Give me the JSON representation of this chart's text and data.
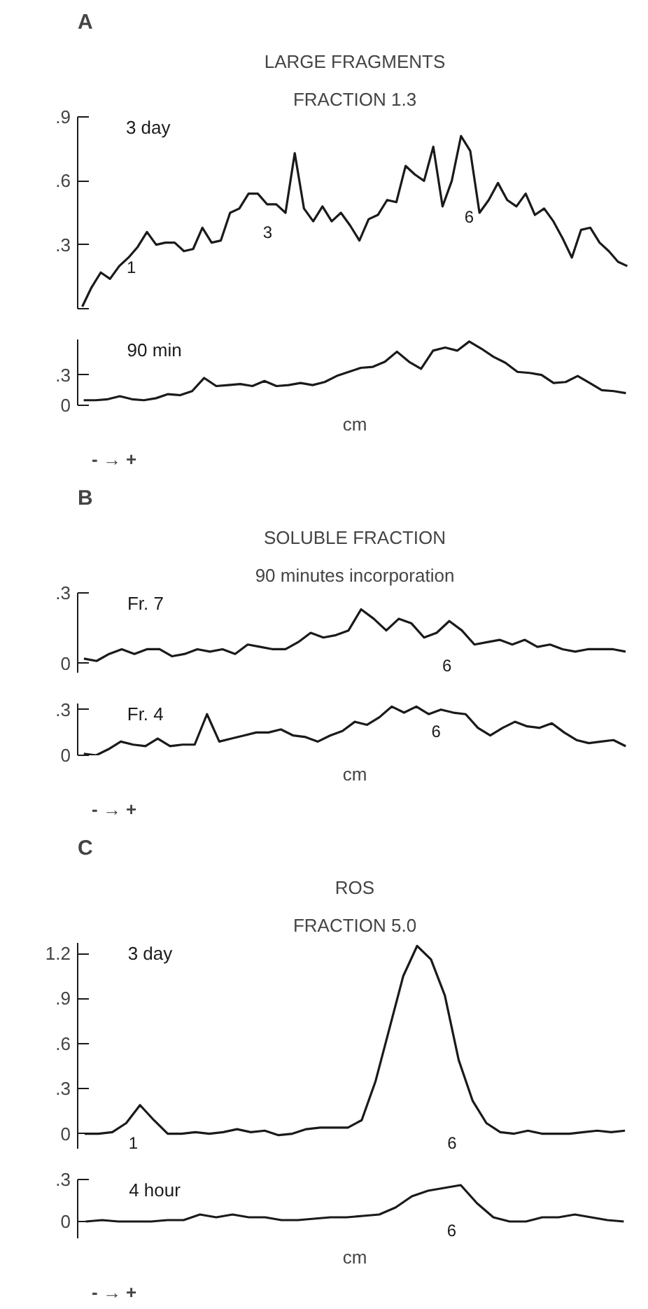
{
  "chart_data": [
    {
      "type": "line",
      "title": "LARGE FRAGMENTS",
      "subtitle": "FRACTION 1.3",
      "annotations": [
        "A",
        "1",
        "3",
        "6"
      ],
      "tick_labels": "y",
      "ylim": [
        0,
        0.9
      ],
      "yticks": [
        {
          "value": 0,
          "label": null
        },
        {
          "value": 0.3,
          "label": ".3"
        },
        {
          "value": 0.6,
          "label": ".6"
        },
        {
          "value": 0.9,
          "label": ".9"
        }
      ],
      "categories": [
        null,
        null,
        null,
        null,
        null,
        null,
        null,
        null,
        null,
        null,
        null,
        null,
        null,
        null,
        null,
        null,
        null,
        null,
        null,
        null,
        null,
        null,
        null,
        null,
        null,
        null,
        null,
        null,
        null,
        null,
        null,
        null,
        null,
        null,
        null,
        null,
        null,
        null,
        null,
        null,
        null,
        null,
        null,
        null,
        null,
        null,
        null,
        null,
        null,
        null,
        null,
        null,
        null,
        null,
        null,
        null,
        null,
        null,
        null,
        null
      ],
      "series": [
        {
          "name": "3 day",
          "color": "#1a1a1a",
          "values": [
            0.01,
            0.1,
            0.17,
            0.14,
            0.2,
            0.24,
            0.29,
            0.36,
            0.3,
            0.31,
            0.31,
            0.27,
            0.28,
            0.38,
            0.31,
            0.32,
            0.45,
            0.47,
            0.54,
            0.54,
            0.49,
            0.49,
            0.45,
            0.73,
            0.47,
            0.41,
            0.48,
            0.41,
            0.45,
            0.39,
            0.32,
            0.42,
            0.44,
            0.51,
            0.5,
            0.67,
            0.63,
            0.6,
            0.76,
            0.48,
            0.6,
            0.81,
            0.74,
            0.45,
            0.51,
            0.59,
            0.51,
            0.48,
            0.54,
            0.44,
            0.47,
            0.41,
            0.33,
            0.24,
            0.37,
            0.38,
            0.31,
            0.27,
            0.22,
            0.2
          ]
        }
      ]
    },
    {
      "type": "line",
      "xlabel": "cm",
      "annotations": [
        "- → +"
      ],
      "tick_labels": "y",
      "ylim": [
        0,
        0.65
      ],
      "yticks": [
        {
          "value": 0,
          "label": "0"
        },
        {
          "value": 0.3,
          "label": ".3"
        }
      ],
      "categories": [
        null,
        null,
        null,
        null,
        null,
        null,
        null,
        null,
        null,
        null,
        null,
        null,
        null,
        null,
        null,
        null,
        null,
        null,
        null,
        null,
        null,
        null,
        null,
        null,
        null,
        null,
        null,
        null,
        null,
        null,
        null,
        null,
        null,
        null,
        null,
        null,
        null,
        null,
        null,
        null,
        null,
        null,
        null,
        null,
        null,
        null
      ],
      "series": [
        {
          "name": "90 min",
          "color": "#1a1a1a",
          "values": [
            0.05,
            0.05,
            0.06,
            0.09,
            0.06,
            0.05,
            0.07,
            0.11,
            0.1,
            0.14,
            0.27,
            0.19,
            0.2,
            0.21,
            0.19,
            0.24,
            0.19,
            0.2,
            0.22,
            0.2,
            0.23,
            0.29,
            0.33,
            0.37,
            0.38,
            0.43,
            0.53,
            0.43,
            0.36,
            0.54,
            0.57,
            0.54,
            0.63,
            0.56,
            0.48,
            0.42,
            0.33,
            0.32,
            0.3,
            0.22,
            0.23,
            0.29,
            0.22,
            0.15,
            0.14,
            0.12
          ]
        }
      ]
    },
    {
      "type": "line",
      "title": "SOLUBLE FRACTION",
      "subtitle": "90 minutes incorporation",
      "annotations": [
        "B",
        "6"
      ],
      "tick_labels": "y",
      "ylim": [
        -0.04,
        0.3
      ],
      "yticks": [
        {
          "value": 0,
          "label": "0"
        },
        {
          "value": 0.3,
          "label": ".3"
        }
      ],
      "categories": [
        null,
        null,
        null,
        null,
        null,
        null,
        null,
        null,
        null,
        null,
        null,
        null,
        null,
        null,
        null,
        null,
        null,
        null,
        null,
        null,
        null,
        null,
        null,
        null,
        null,
        null,
        null,
        null,
        null,
        null,
        null,
        null,
        null,
        null,
        null,
        null,
        null,
        null,
        null,
        null,
        null,
        null,
        null,
        null
      ],
      "series": [
        {
          "name": "Fr. 7",
          "color": "#1a1a1a",
          "values": [
            0.02,
            0.01,
            0.04,
            0.06,
            0.04,
            0.06,
            0.06,
            0.03,
            0.04,
            0.06,
            0.05,
            0.06,
            0.04,
            0.08,
            0.07,
            0.06,
            0.06,
            0.09,
            0.13,
            0.11,
            0.12,
            0.14,
            0.23,
            0.19,
            0.14,
            0.19,
            0.17,
            0.11,
            0.13,
            0.18,
            0.14,
            0.08,
            0.09,
            0.1,
            0.08,
            0.1,
            0.07,
            0.08,
            0.06,
            0.05,
            0.06,
            0.06,
            0.06,
            0.05
          ]
        }
      ]
    },
    {
      "type": "line",
      "xlabel": "cm",
      "annotations": [
        "6",
        "- → +"
      ],
      "tick_labels": "y",
      "ylim": [
        0,
        0.34
      ],
      "yticks": [
        {
          "value": 0,
          "label": "0"
        },
        {
          "value": 0.3,
          "label": ".3"
        }
      ],
      "categories": [
        null,
        null,
        null,
        null,
        null,
        null,
        null,
        null,
        null,
        null,
        null,
        null,
        null,
        null,
        null,
        null,
        null,
        null,
        null,
        null,
        null,
        null,
        null,
        null,
        null,
        null,
        null,
        null,
        null,
        null,
        null,
        null,
        null,
        null,
        null,
        null,
        null,
        null,
        null,
        null,
        null,
        null,
        null,
        null,
        null
      ],
      "series": [
        {
          "name": "Fr. 4",
          "color": "#1a1a1a",
          "values": [
            0.01,
            0.0,
            0.04,
            0.09,
            0.07,
            0.06,
            0.11,
            0.06,
            0.07,
            0.07,
            0.27,
            0.09,
            0.11,
            0.13,
            0.15,
            0.15,
            0.17,
            0.13,
            0.12,
            0.09,
            0.13,
            0.16,
            0.22,
            0.2,
            0.25,
            0.32,
            0.28,
            0.32,
            0.27,
            0.3,
            0.28,
            0.27,
            0.18,
            0.13,
            0.18,
            0.22,
            0.19,
            0.18,
            0.21,
            0.15,
            0.1,
            0.08,
            0.09,
            0.1,
            0.06
          ]
        }
      ]
    },
    {
      "type": "line",
      "title": "ROS",
      "subtitle": "FRACTION 5.0",
      "annotations": [
        "C",
        "1",
        "6"
      ],
      "tick_labels": "y",
      "ylim": [
        -0.1,
        1.27
      ],
      "yticks": [
        {
          "value": 0,
          "label": "0"
        },
        {
          "value": 0.3,
          "label": ".3"
        },
        {
          "value": 0.6,
          "label": ".6"
        },
        {
          "value": 0.9,
          "label": ".9"
        },
        {
          "value": 1.2,
          "label": "1.2"
        }
      ],
      "categories": [
        null,
        null,
        null,
        null,
        null,
        null,
        null,
        null,
        null,
        null,
        null,
        null,
        null,
        null,
        null,
        null,
        null,
        null,
        null,
        null,
        null,
        null,
        null,
        null,
        null,
        null,
        null,
        null,
        null,
        null,
        null,
        null,
        null,
        null,
        null,
        null,
        null,
        null,
        null,
        null
      ],
      "series": [
        {
          "name": "3 day",
          "color": "#1a1a1a",
          "values": [
            0,
            0,
            0.01,
            0.07,
            0.19,
            0.09,
            0.0,
            0,
            0.01,
            0,
            0.01,
            0.03,
            0.01,
            0.02,
            -0.01,
            0,
            0.03,
            0.04,
            0.04,
            0.04,
            0.09,
            0.35,
            0.7,
            1.05,
            1.25,
            1.16,
            0.92,
            0.49,
            0.22,
            0.07,
            0.01,
            0,
            0.02,
            0,
            0,
            0,
            0.01,
            0.02,
            0.01,
            0.02
          ]
        }
      ]
    },
    {
      "type": "line",
      "xlabel": "cm",
      "annotations": [
        "6",
        "- → +"
      ],
      "tick_labels": "y",
      "ylim": [
        -0.12,
        0.3
      ],
      "yticks": [
        {
          "value": 0,
          "label": "0"
        },
        {
          "value": 0.3,
          "label": ".3"
        }
      ],
      "categories": [
        null,
        null,
        null,
        null,
        null,
        null,
        null,
        null,
        null,
        null,
        null,
        null,
        null,
        null,
        null,
        null,
        null,
        null,
        null,
        null,
        null,
        null,
        null,
        null,
        null,
        null,
        null,
        null,
        null,
        null,
        null,
        null,
        null,
        null
      ],
      "series": [
        {
          "name": "4 hour",
          "color": "#1a1a1a",
          "values": [
            0,
            0.01,
            0,
            0,
            0,
            0.01,
            0.01,
            0.05,
            0.03,
            0.05,
            0.03,
            0.03,
            0.01,
            0.01,
            0.02,
            0.03,
            0.03,
            0.04,
            0.05,
            0.1,
            0.18,
            0.22,
            0.24,
            0.26,
            0.13,
            0.03,
            0,
            0,
            0.03,
            0.03,
            0.05,
            0.03,
            0.01,
            0
          ]
        }
      ]
    }
  ]
}
